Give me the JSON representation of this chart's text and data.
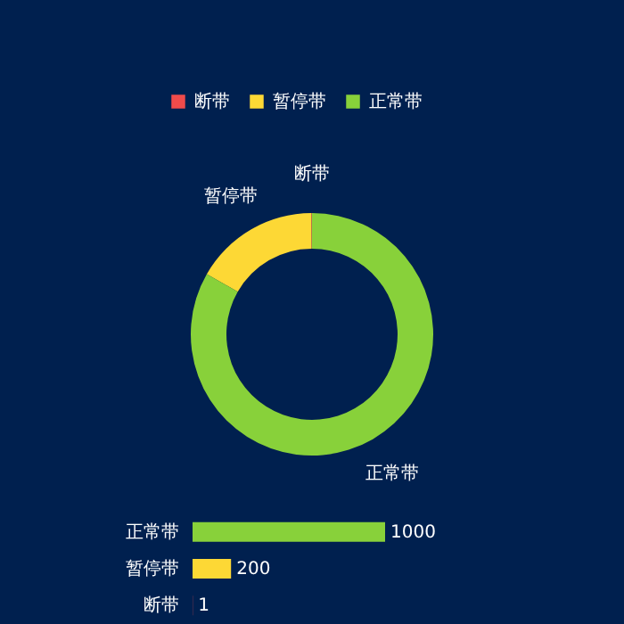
{
  "chart_data": [
    {
      "type": "donut",
      "categories": [
        "断带",
        "暂停带",
        "正常带"
      ],
      "values": [
        0.08,
        16.65,
        83.27
      ],
      "colors": [
        "#f04b4b",
        "#fdd835",
        "#88d13a"
      ],
      "legend": "top"
    },
    {
      "type": "bar",
      "orientation": "horizontal",
      "categories": [
        "正常带",
        "暂停带",
        "断带"
      ],
      "values": [
        1000,
        200,
        1
      ],
      "colors": [
        "#88d13a",
        "#fdd835",
        "#f04b4b"
      ],
      "data_labels": true
    }
  ]
}
